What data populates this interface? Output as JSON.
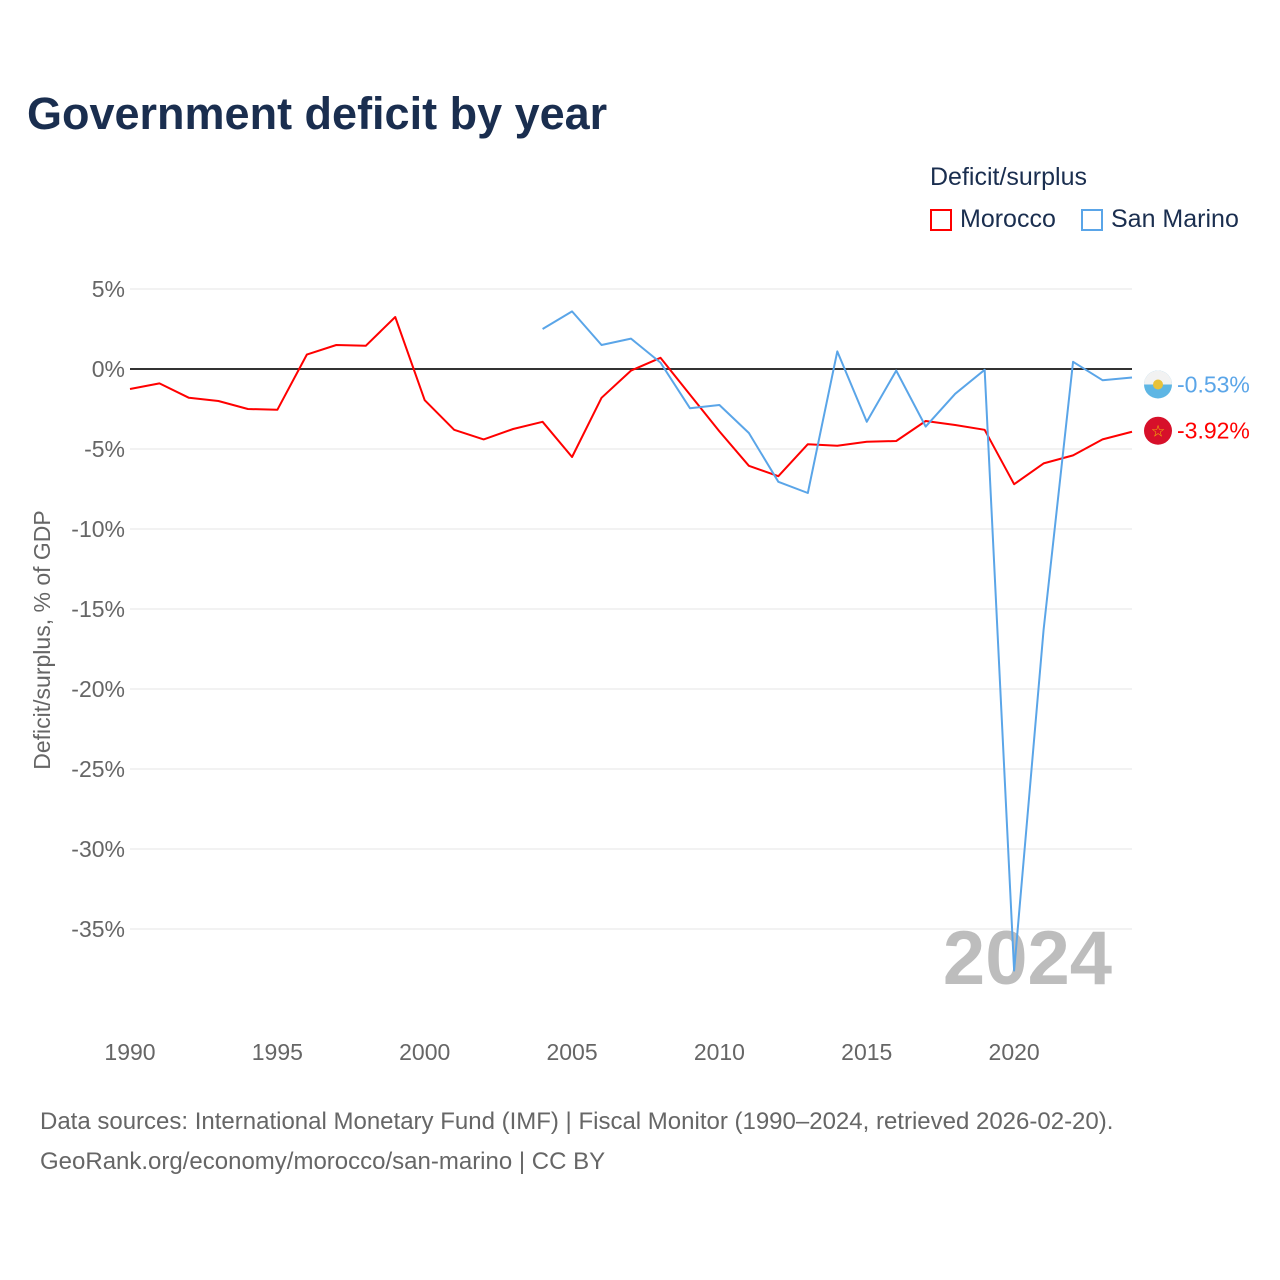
{
  "title": "Government deficit by year",
  "legend": {
    "title": "Deficit/surplus"
  },
  "watermark_year": "2024",
  "sources": [
    "Data sources: International Monetary Fund (IMF) | Fiscal Monitor (1990–2024, retrieved 2026-02-20).",
    "GeoRank.org/economy/morocco/san-marino | CC BY"
  ],
  "chart_data": {
    "type": "line",
    "title": "Government deficit by year",
    "xlabel": "",
    "ylabel": "Deficit/surplus, % of GDP",
    "xlim": [
      1990,
      2024
    ],
    "ylim": [
      -40,
      5
    ],
    "xticks": [
      1990,
      1995,
      2000,
      2005,
      2010,
      2015,
      2020
    ],
    "xtick_labels": [
      "1990",
      "1995",
      "2000",
      "2005",
      "2010",
      "2015",
      "2020"
    ],
    "yticks": [
      5,
      0,
      -5,
      -10,
      -15,
      -20,
      -25,
      -30,
      -35
    ],
    "ytick_labels": [
      "5%",
      "0%",
      "-5%",
      "-10%",
      "-15%",
      "-20%",
      "-25%",
      "-30%",
      "-35%"
    ],
    "legend_position": "top-right",
    "series": [
      {
        "name": "Morocco",
        "color": "#ff0000",
        "end_label": "-3.92%",
        "x": [
          1990,
          1991,
          1992,
          1993,
          1994,
          1995,
          1996,
          1997,
          1998,
          1999,
          2000,
          2001,
          2002,
          2003,
          2004,
          2005,
          2006,
          2007,
          2008,
          2009,
          2010,
          2011,
          2012,
          2013,
          2014,
          2015,
          2016,
          2017,
          2018,
          2019,
          2020,
          2021,
          2022,
          2023,
          2024
        ],
        "values": [
          -1.25,
          -0.9,
          -1.8,
          -2.0,
          -2.5,
          -2.55,
          0.9,
          1.5,
          1.45,
          3.25,
          -1.95,
          -3.8,
          -4.4,
          -3.75,
          -3.3,
          -5.5,
          -1.8,
          -0.1,
          0.7,
          -1.6,
          -3.9,
          -6.05,
          -6.7,
          -4.7,
          -4.8,
          -4.55,
          -4.5,
          -3.25,
          -3.5,
          -3.8,
          -7.2,
          -5.9,
          -5.4,
          -4.4,
          -3.92
        ]
      },
      {
        "name": "San Marino",
        "color": "#5aa5e8",
        "end_label": "-0.53%",
        "x": [
          2004,
          2005,
          2006,
          2007,
          2008,
          2009,
          2010,
          2011,
          2012,
          2013,
          2014,
          2015,
          2016,
          2017,
          2018,
          2019,
          2020,
          2021,
          2022,
          2023,
          2024
        ],
        "values": [
          2.5,
          3.6,
          1.5,
          1.9,
          0.4,
          -2.45,
          -2.25,
          -4.0,
          -7.05,
          -7.75,
          1.1,
          -3.3,
          -0.1,
          -3.6,
          -1.55,
          -0.05,
          -37.6,
          -16.3,
          0.45,
          -0.7,
          -0.53
        ]
      }
    ]
  }
}
